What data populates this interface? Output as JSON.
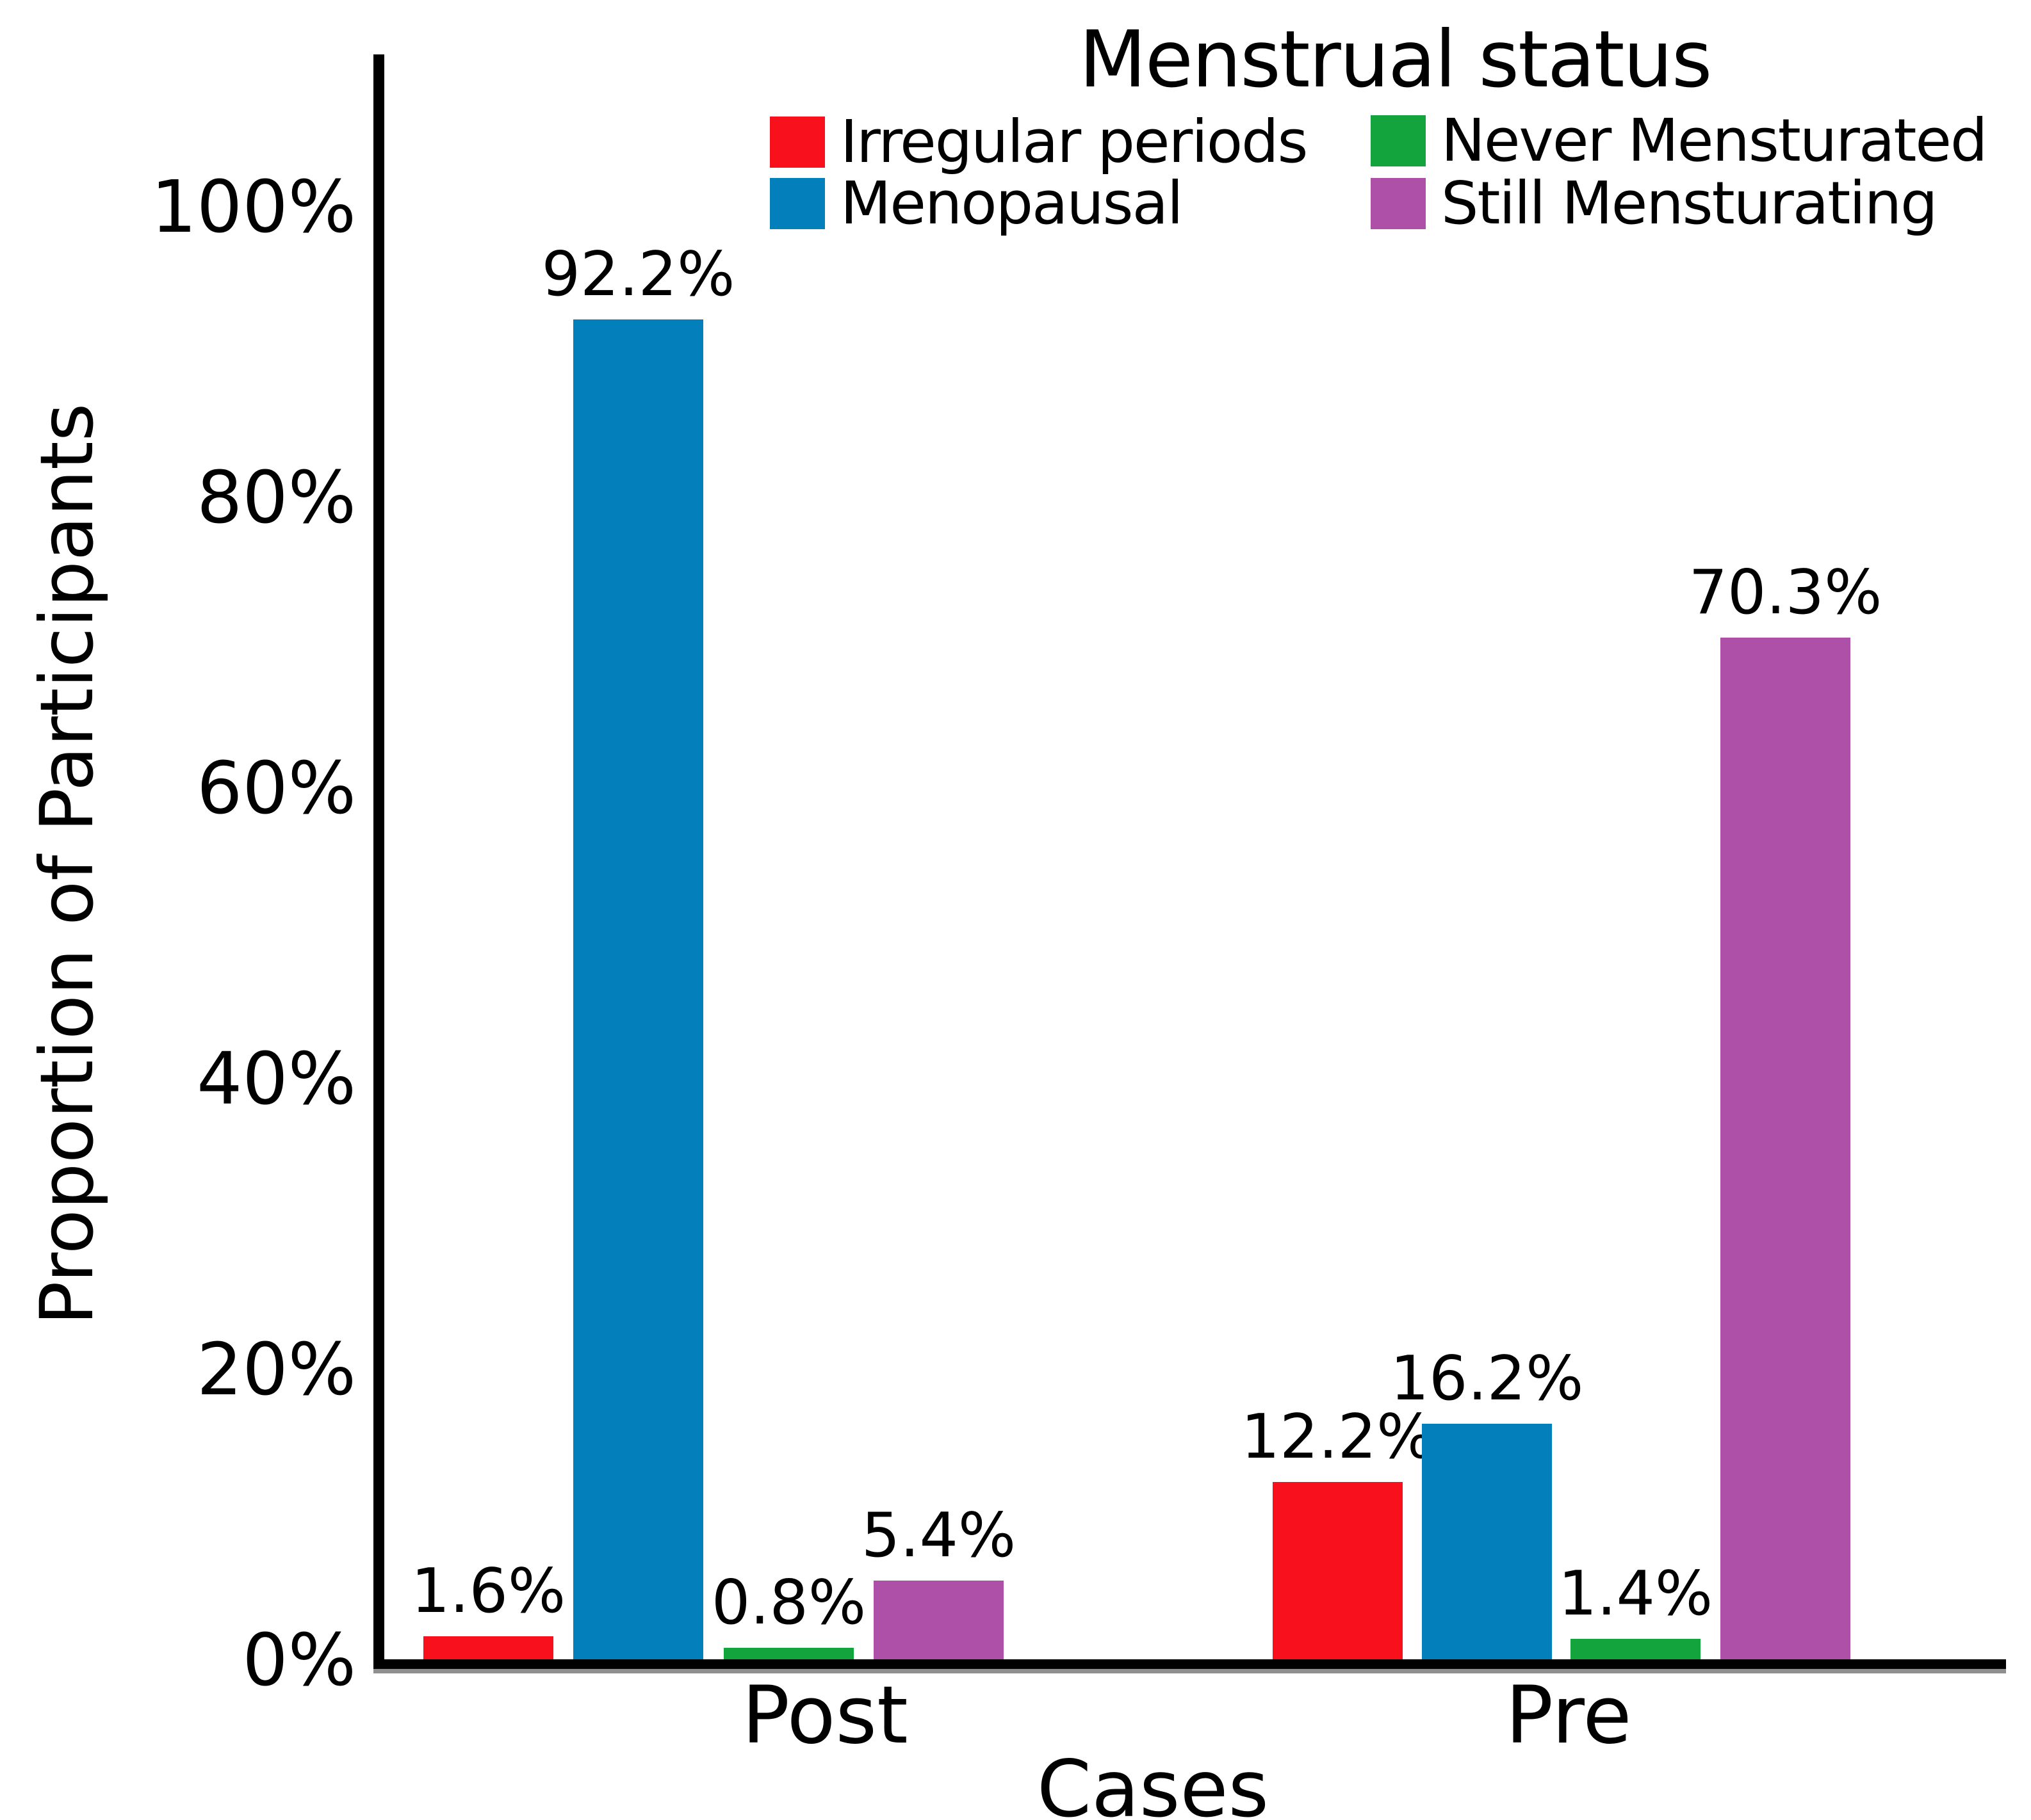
{
  "chart_data": {
    "type": "bar",
    "legend_title": "Menstrual status",
    "xlabel": "Cases",
    "ylabel": "Proportion of Participants",
    "categories": [
      "Post",
      "Pre"
    ],
    "series": [
      {
        "name": "Irregular periods",
        "color": "#f8111d",
        "values": [
          1.6,
          12.2
        ],
        "labels": [
          "1.6%",
          "12.2%"
        ]
      },
      {
        "name": "Menopausal",
        "color": "#0380bb",
        "values": [
          92.2,
          16.2
        ],
        "labels": [
          "92.2%",
          "16.2%"
        ]
      },
      {
        "name": "Never Mensturated",
        "color": "#13a43d",
        "values": [
          0.8,
          1.4
        ],
        "labels": [
          "0.8%",
          "1.4%"
        ]
      },
      {
        "name": "Still Mensturating",
        "color": "#ae4fa8",
        "values": [
          5.4,
          70.3
        ],
        "labels": [
          "5.4%",
          "70.3%"
        ]
      }
    ],
    "ylim": [
      0,
      100
    ],
    "ytick_labels": [
      "0%",
      "20%",
      "40%",
      "60%",
      "80%",
      "100%"
    ],
    "grid": false,
    "legend_position": "top",
    "axis_color": "#000000",
    "axis_shadow_color": "#8f8f8f"
  }
}
